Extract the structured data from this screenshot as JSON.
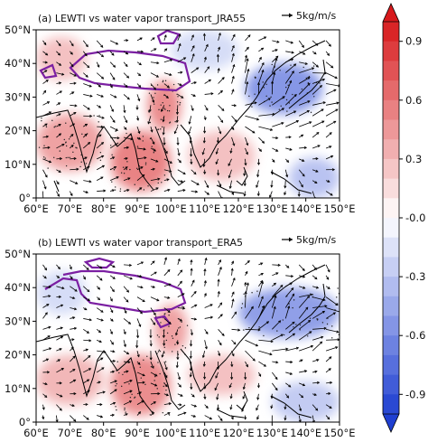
{
  "chart_data": [
    {
      "type": "heatmap",
      "title": "(a) LEWTI vs water vapor transport_JRA55",
      "reference_vector": {
        "label": "5kg/m/s",
        "value": 5,
        "units": "kg/m/s"
      },
      "x_ticks": [
        "60°E",
        "70°E",
        "80°E",
        "90°E",
        "100°E",
        "110°E",
        "120°E",
        "130°E",
        "140°E",
        "150°E"
      ],
      "y_ticks": [
        "0°",
        "10°N",
        "20°N",
        "30°N",
        "40°N",
        "50°N"
      ],
      "xlim": [
        60,
        150
      ],
      "ylim": [
        0,
        50
      ],
      "features": {
        "contour_color": "#7b1fa2",
        "vector_color": "#000000",
        "stippling": true
      },
      "regions": [
        {
          "lon": [
            60,
            80
          ],
          "lat": [
            8,
            25
          ],
          "value": 0.45
        },
        {
          "lon": [
            82,
            100
          ],
          "lat": [
            2,
            20
          ],
          "value": 0.6
        },
        {
          "lon": [
            93,
            103
          ],
          "lat": [
            20,
            35
          ],
          "value": 0.55
        },
        {
          "lon": [
            60,
            75
          ],
          "lat": [
            35,
            48
          ],
          "value": 0.3
        },
        {
          "lon": [
            122,
            145
          ],
          "lat": [
            25,
            40
          ],
          "value": -0.6
        },
        {
          "lon": [
            135,
            150
          ],
          "lat": [
            0,
            12
          ],
          "value": -0.35
        },
        {
          "lon": [
            100,
            120
          ],
          "lat": [
            38,
            50
          ],
          "value": -0.2
        },
        {
          "lon": [
            105,
            125
          ],
          "lat": [
            5,
            20
          ],
          "value": 0.3
        }
      ]
    },
    {
      "type": "heatmap",
      "title": "(b) LEWTI vs water vapor transport_ERA5",
      "reference_vector": {
        "label": "5kg/m/s",
        "value": 5,
        "units": "kg/m/s"
      },
      "x_ticks": [
        "60°E",
        "70°E",
        "80°E",
        "90°E",
        "100°E",
        "110°E",
        "120°E",
        "130°E",
        "140°E",
        "150°E"
      ],
      "y_ticks": [
        "0°",
        "10°N",
        "20°N",
        "30°N",
        "40°N",
        "50°N"
      ],
      "xlim": [
        60,
        150
      ],
      "ylim": [
        0,
        50
      ],
      "features": {
        "contour_color": "#7b1fa2",
        "vector_color": "#000000",
        "stippling": true
      },
      "regions": [
        {
          "lon": [
            60,
            80
          ],
          "lat": [
            5,
            20
          ],
          "value": 0.35
        },
        {
          "lon": [
            82,
            100
          ],
          "lat": [
            2,
            20
          ],
          "value": 0.55
        },
        {
          "lon": [
            95,
            105
          ],
          "lat": [
            20,
            35
          ],
          "value": 0.45
        },
        {
          "lon": [
            60,
            75
          ],
          "lat": [
            32,
            45
          ],
          "value": -0.2
        },
        {
          "lon": [
            120,
            150
          ],
          "lat": [
            25,
            40
          ],
          "value": -0.55
        },
        {
          "lon": [
            130,
            150
          ],
          "lat": [
            0,
            12
          ],
          "value": -0.3
        },
        {
          "lon": [
            105,
            125
          ],
          "lat": [
            8,
            20
          ],
          "value": 0.3
        }
      ]
    }
  ],
  "colorbar": {
    "tick_labels": [
      "0.9",
      "0.6",
      "0.3",
      "-0.0",
      "-0.3",
      "-0.6",
      "-0.9"
    ],
    "tick_values": [
      0.9,
      0.6,
      0.3,
      0.0,
      -0.3,
      -0.6,
      -0.9
    ],
    "range": [
      -1.0,
      1.0
    ],
    "levels": 20,
    "cmap": "bwr",
    "extend": "both",
    "colors": {
      "max": "#d7191c",
      "mid": "#ffffff",
      "min": "#1f3fd1"
    }
  }
}
